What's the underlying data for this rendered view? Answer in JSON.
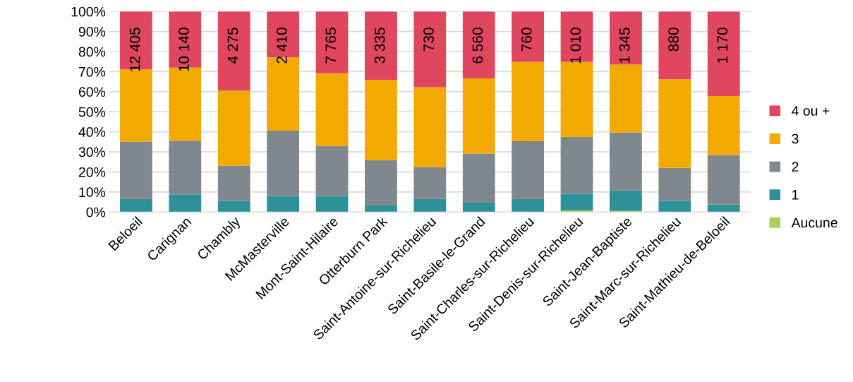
{
  "chart_data": {
    "type": "bar",
    "stacked": true,
    "categories": [
      "Beloeil",
      "Carignan",
      "Chambly",
      "McMasterville",
      "Mont-Saint-Hilaire",
      "Otterburn Park",
      "Saint-Antoine-sur-Richelieu",
      "Saint-Basile-le-Grand",
      "Saint-Charles-sur-Richelieu",
      "Saint-Denis-sur-Richelieu",
      "Saint-Jean-Baptiste",
      "Saint-Marc-sur-Richelieu",
      "Saint-Mathieu-de-Beloeil"
    ],
    "series": [
      {
        "name": "Aucune",
        "color": "#a6d45a",
        "values": [
          0,
          0,
          0,
          0,
          0,
          0,
          0,
          0,
          0,
          0.8,
          0.5,
          0,
          0
        ]
      },
      {
        "name": "1",
        "color": "#2e9199",
        "values": [
          6.5,
          8.8,
          5.5,
          8.0,
          8.0,
          3.3,
          6.5,
          4.7,
          6.5,
          8.3,
          10.3,
          5.5,
          3.8
        ]
      },
      {
        "name": "2",
        "color": "#7f888d",
        "values": [
          28.5,
          26.8,
          17.6,
          32.6,
          24.9,
          22.6,
          15.9,
          24.4,
          28.8,
          28.4,
          28.8,
          16.5,
          24.6
        ]
      },
      {
        "name": "3",
        "color": "#f2a900",
        "values": [
          36.1,
          36.4,
          37.4,
          36.5,
          36.3,
          40.0,
          39.8,
          37.5,
          39.5,
          37.3,
          33.9,
          44.2,
          29.4
        ]
      },
      {
        "name": "4 ou +",
        "color": "#e0475f",
        "values": [
          28.9,
          28.0,
          39.5,
          22.9,
          30.8,
          34.1,
          37.8,
          33.4,
          25.2,
          25.2,
          26.5,
          33.8,
          42.2
        ]
      }
    ],
    "annotations": [
      {
        "text": "12 405",
        "x": "Beloeil",
        "y": 100
      },
      {
        "text": "10 140",
        "x": "Carignan",
        "y": 100
      },
      {
        "text": "4 275",
        "x": "Chambly",
        "y": 100
      },
      {
        "text": "2 410",
        "x": "McMasterville",
        "y": 100
      },
      {
        "text": "7 765",
        "x": "Mont-Saint-Hilaire",
        "y": 100
      },
      {
        "text": "3 335",
        "x": "Otterburn Park",
        "y": 100
      },
      {
        "text": "730",
        "x": "Saint-Antoine-sur-Richelieu",
        "y": 100
      },
      {
        "text": "6 560",
        "x": "Saint-Basile-le-Grand",
        "y": 100
      },
      {
        "text": "760",
        "x": "Saint-Charles-sur-Richelieu",
        "y": 100
      },
      {
        "text": "1 010",
        "x": "Saint-Denis-sur-Richelieu",
        "y": 100
      },
      {
        "text": "1 345",
        "x": "Saint-Jean-Baptiste",
        "y": 100
      },
      {
        "text": "880",
        "x": "Saint-Marc-sur-Richelieu",
        "y": 100
      },
      {
        "text": "1 170",
        "x": "Saint-Mathieu-de-Beloeil",
        "y": 100
      }
    ],
    "ylim": [
      0,
      100
    ],
    "yticks": [
      {
        "value": 0,
        "label": "0%"
      },
      {
        "value": 10,
        "label": "10%"
      },
      {
        "value": 20,
        "label": "20%"
      },
      {
        "value": 30,
        "label": "30%"
      },
      {
        "value": 40,
        "label": "40%"
      },
      {
        "value": 50,
        "label": "50%"
      },
      {
        "value": 60,
        "label": "60%"
      },
      {
        "value": 70,
        "label": "70%"
      },
      {
        "value": 80,
        "label": "80%"
      },
      {
        "value": 90,
        "label": "90%"
      },
      {
        "value": 100,
        "label": "100%"
      }
    ],
    "grid": "y",
    "legend": "right"
  }
}
